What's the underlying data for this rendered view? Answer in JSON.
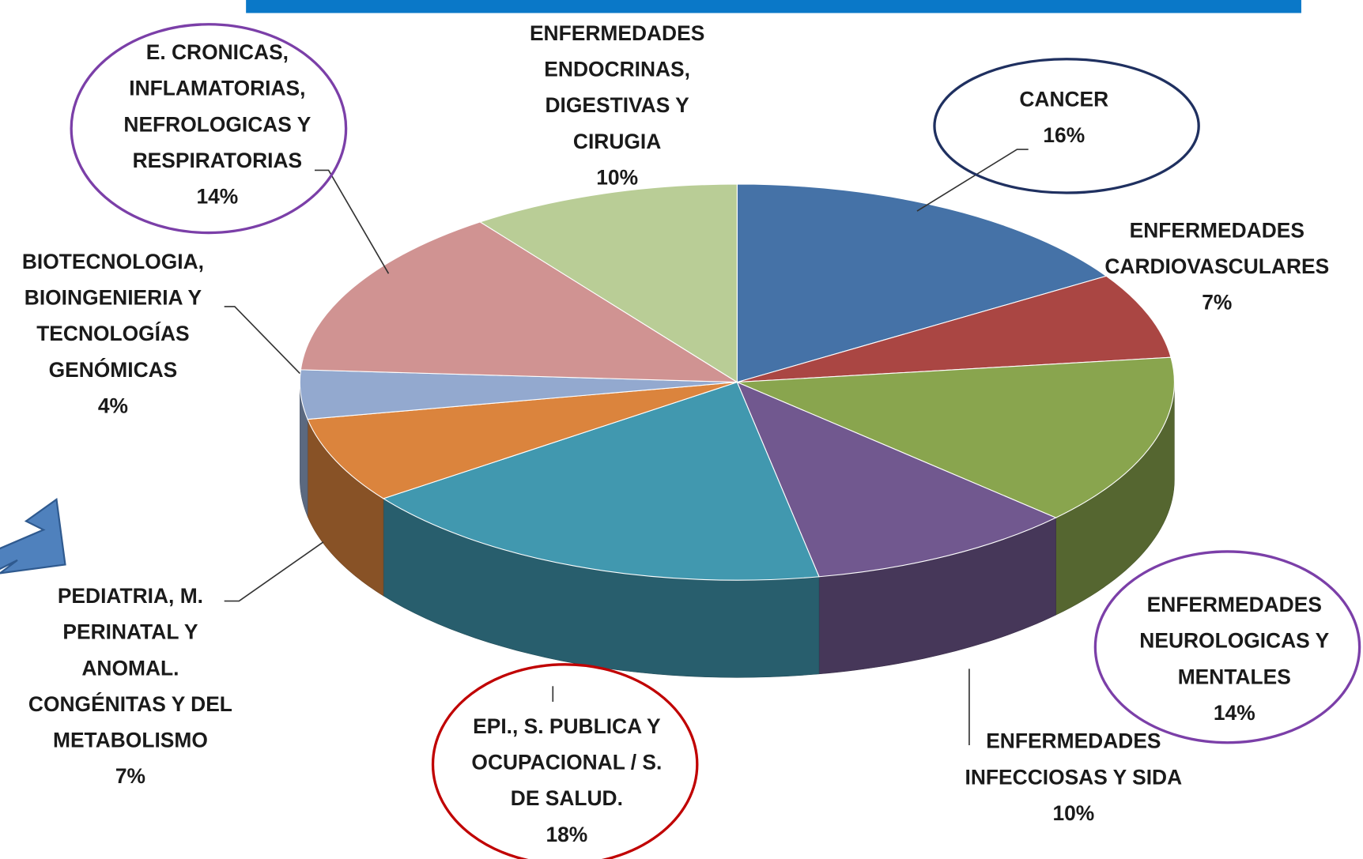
{
  "chart_data": {
    "type": "pie",
    "categories": [
      [
        "CANCER"
      ],
      [
        "ENFERMEDADES",
        "CARDIOVASCULARES"
      ],
      [
        "ENFERMEDADES",
        "NEUROLOGICAS Y",
        "MENTALES"
      ],
      [
        "ENFERMEDADES",
        "INFECCIOSAS Y SIDA"
      ],
      [
        "EPI., S. PUBLICA Y",
        "OCUPACIONAL / S.",
        "DE SALUD."
      ],
      [
        "PEDIATRIA, M.",
        "PERINATAL Y",
        "ANOMAL.",
        "CONGÉNITAS Y DEL",
        "METABOLISMO"
      ],
      [
        "BIOTECNOLOGIA,",
        "BIOINGENIERIA Y",
        "TECNOLOGÍAS",
        "GENÓMICAS"
      ],
      [
        "E. CRONICAS,",
        "INFLAMATORIAS,",
        "NEFROLOGICAS Y",
        "RESPIRATORIAS"
      ],
      [
        "ENFERMEDADES",
        "ENDOCRINAS,",
        "DIGESTIVAS Y",
        "CIRUGIA"
      ]
    ],
    "values": [
      16,
      7,
      14,
      10,
      18,
      7,
      4,
      14,
      10
    ],
    "value_labels": [
      "16%",
      "7%",
      "14%",
      "10%",
      "18%",
      "7%",
      "4%",
      "14%",
      "10%"
    ],
    "colors": [
      "#4572a7",
      "#aa4643",
      "#89a54e",
      "#71588f",
      "#4198af",
      "#db843d",
      "#93a9cf",
      "#d09392",
      "#b9cd96"
    ]
  }
}
